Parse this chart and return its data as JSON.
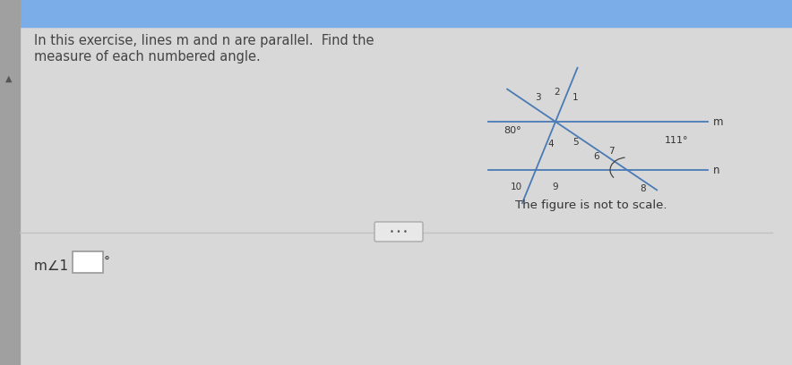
{
  "bg_color": "#d8d8d8",
  "panel_color": "#ebebeb",
  "title_text": "In this exercise, lines m and n are parallel.  Find the\nmeasure of each numbered angle.",
  "title_fontsize": 10.5,
  "title_color": "#444444",
  "fig_note": "The figure is not to scale.",
  "line_color": "#4a7ab5",
  "line_width": 1.3,
  "m_label": "m",
  "n_label": "n",
  "angle_given_1": "80°",
  "angle_given_2": "111°",
  "sidebar_color": "#a0a0a0",
  "topbar_color": "#7baee8",
  "divline_color": "#c0c0c0",
  "answer_fontsize": 11,
  "note_fontsize": 9.5
}
